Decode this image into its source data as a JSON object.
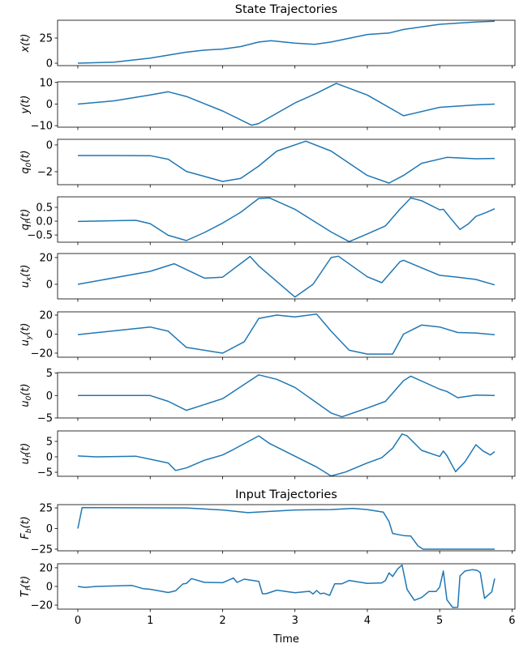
{
  "chart_data": [
    {
      "type": "line",
      "title": "State Trajectories",
      "ylabel": {
        "sym": "x",
        "sub": "",
        "arg": "(t)"
      },
      "xlim": [
        -0.28,
        6.04
      ],
      "ylim": [
        -2.4,
        42.7
      ],
      "yticks": [
        0,
        25
      ],
      "color": "#1f77b4",
      "grid": false,
      "x": [
        0,
        0.5,
        1,
        1.5,
        1.75,
        2,
        2.25,
        2.5,
        2.67,
        3,
        3.27,
        3.5,
        4,
        4.3,
        4.5,
        5,
        5.5,
        5.76
      ],
      "y": [
        0,
        1,
        5,
        11,
        13,
        14,
        16.5,
        21,
        22.3,
        20,
        18.8,
        21,
        28.5,
        30,
        33.5,
        38.7,
        41,
        41.7
      ]
    },
    {
      "type": "line",
      "ylabel": {
        "sym": "y",
        "sub": "",
        "arg": "(t)"
      },
      "xlim": [
        -0.28,
        6.04
      ],
      "ylim": [
        -10.7,
        10.3
      ],
      "yticks": [
        -10,
        0,
        10
      ],
      "x": [
        0,
        0.5,
        1,
        1.25,
        1.5,
        2,
        2.4,
        2.5,
        3,
        3.3,
        3.57,
        4,
        4.5,
        5,
        5.5,
        5.76
      ],
      "y": [
        0,
        1.5,
        4.2,
        5.7,
        3.5,
        -3.2,
        -9.8,
        -9,
        0.5,
        5,
        9.6,
        4.2,
        -5.4,
        -1.5,
        -0.4,
        0
      ]
    },
    {
      "type": "line",
      "ylabel": {
        "sym": "q",
        "sub": "0",
        "arg": "(t)"
      },
      "xlim": [
        -0.28,
        6.04
      ],
      "ylim": [
        -2.97,
        0.42
      ],
      "yticks": [
        -2,
        0
      ],
      "x": [
        0,
        0.5,
        1,
        1.25,
        1.5,
        2,
        2.25,
        2.5,
        2.75,
        3.15,
        3.5,
        4,
        4.3,
        4.5,
        4.75,
        5.1,
        5.5,
        5.76
      ],
      "y": [
        -0.79,
        -0.79,
        -0.8,
        -1.07,
        -1.98,
        -2.73,
        -2.5,
        -1.58,
        -0.46,
        0.28,
        -0.46,
        -2.28,
        -2.85,
        -2.28,
        -1.37,
        -0.93,
        -1.03,
        -1.01
      ]
    },
    {
      "type": "line",
      "ylabel": {
        "sym": "q",
        "sub": "f",
        "arg": "(t)"
      },
      "xlim": [
        -0.28,
        6.04
      ],
      "ylim": [
        -0.76,
        0.88
      ],
      "yticks": [
        -0.5,
        0,
        0.5
      ],
      "x": [
        0,
        0.8,
        1,
        1.25,
        1.5,
        1.75,
        2,
        2.25,
        2.5,
        2.65,
        3,
        3.5,
        3.75,
        4,
        4.25,
        4.45,
        4.6,
        4.75,
        5,
        5.05,
        5.15,
        5.28,
        5.4,
        5.5,
        5.65,
        5.76
      ],
      "y": [
        -0.01,
        0.03,
        -0.09,
        -0.51,
        -0.7,
        -0.41,
        -0.07,
        0.32,
        0.82,
        0.84,
        0.43,
        -0.39,
        -0.74,
        -0.46,
        -0.17,
        0.43,
        0.84,
        0.74,
        0.41,
        0.43,
        0.11,
        -0.3,
        -0.09,
        0.17,
        0.32,
        0.45
      ]
    },
    {
      "type": "line",
      "ylabel": {
        "sym": "u",
        "sub": "x",
        "arg": "(t)"
      },
      "xlim": [
        -0.28,
        6.04
      ],
      "ylim": [
        -10.9,
        23
      ],
      "yticks": [
        0,
        20
      ],
      "x": [
        0,
        1,
        1.33,
        1.75,
        2,
        2.38,
        2.5,
        3,
        3.25,
        3.5,
        3.6,
        4,
        4.2,
        4.45,
        4.5,
        5,
        5.25,
        5.5,
        5.76
      ],
      "y": [
        0,
        9.7,
        15.4,
        4.6,
        5.3,
        20.8,
        13.7,
        -9.5,
        0,
        20,
        21,
        5.6,
        1.2,
        16.8,
        18,
        6.7,
        5.3,
        3.6,
        -0.4
      ]
    },
    {
      "type": "line",
      "ylabel": {
        "sym": "u",
        "sub": "y",
        "arg": "(t)"
      },
      "xlim": [
        -0.28,
        6.04
      ],
      "ylim": [
        -24.3,
        23.4
      ],
      "yticks": [
        -20,
        0,
        20
      ],
      "x": [
        0,
        1,
        1.25,
        1.5,
        2,
        2.3,
        2.5,
        2.75,
        3,
        3.3,
        3.5,
        3.75,
        4,
        4.35,
        4.5,
        4.75,
        5,
        5.25,
        5.5,
        5.76
      ],
      "y": [
        -0.5,
        7.5,
        3,
        -14,
        -20,
        -8,
        16.5,
        20,
        18,
        21,
        3,
        -17,
        -21,
        -21,
        0,
        9.5,
        7.5,
        1.7,
        1.2,
        -0.6
      ]
    },
    {
      "type": "line",
      "ylabel": {
        "sym": "u",
        "sub": "0",
        "arg": "(t)"
      },
      "xlim": [
        -0.28,
        6.04
      ],
      "ylim": [
        -5.0,
        5.1
      ],
      "yticks": [
        -5,
        0,
        5
      ],
      "x": [
        0,
        1,
        1.25,
        1.5,
        2,
        2.5,
        2.75,
        3,
        3.5,
        3.65,
        4,
        4.25,
        4.5,
        4.6,
        5,
        5.1,
        5.25,
        5.5,
        5.76
      ],
      "y": [
        0,
        0,
        -1.3,
        -3.3,
        -0.7,
        4.6,
        3.6,
        1.8,
        -3.9,
        -4.75,
        -2.8,
        -1.3,
        3.3,
        4.3,
        1.4,
        0.9,
        -0.5,
        0.1,
        0
      ]
    },
    {
      "type": "line",
      "ylabel": {
        "sym": "u",
        "sub": "f",
        "arg": "(t)"
      },
      "xlim": [
        -0.28,
        6.04
      ],
      "ylim": [
        -6.3,
        8.4
      ],
      "yticks": [
        -5,
        0,
        5
      ],
      "x": [
        0,
        0.25,
        0.8,
        1.25,
        1.35,
        1.5,
        1.75,
        2,
        2.15,
        2.5,
        2.65,
        3,
        3.3,
        3.5,
        3.7,
        4,
        4.2,
        4.35,
        4.48,
        4.55,
        4.75,
        5,
        5.05,
        5.1,
        5.22,
        5.35,
        5.5,
        5.6,
        5.7,
        5.76
      ],
      "y": [
        0.3,
        0,
        0.2,
        -2,
        -4.4,
        -3.6,
        -1.1,
        0.6,
        2.4,
        6.8,
        4.3,
        0.2,
        -3.3,
        -6.2,
        -4.9,
        -2,
        -0.3,
        2.8,
        7.4,
        6.8,
        2.1,
        0.1,
        1.9,
        0.4,
        -4.8,
        -1.6,
        3.9,
        1.9,
        0.6,
        1.7
      ]
    },
    {
      "type": "line",
      "title": "Input Trajectories",
      "ylabel": {
        "sym": "F",
        "sub": "b",
        "arg": "(t)"
      },
      "xlim": [
        -0.28,
        6.04
      ],
      "ylim": [
        -27,
        29
      ],
      "yticks": [
        -25,
        0,
        25
      ],
      "x": [
        0,
        0.06,
        1.5,
        2,
        2.35,
        3,
        3.5,
        3.8,
        4,
        4.22,
        4.3,
        4.35,
        4.5,
        4.6,
        4.7,
        4.77,
        5.76
      ],
      "y": [
        0,
        25.5,
        25,
        22.5,
        19.3,
        22.5,
        23,
        24.5,
        23,
        20,
        8.5,
        -6,
        -8.5,
        -9,
        -21,
        -25,
        -25
      ]
    },
    {
      "type": "line",
      "ylabel": {
        "sym": "T",
        "sub": "f",
        "arg": "(t)"
      },
      "xlabel": "Time",
      "xlim": [
        -0.28,
        6.04
      ],
      "ylim": [
        -24.3,
        24.3
      ],
      "yticks": [
        -20,
        0,
        20
      ],
      "xticks": [
        0,
        1,
        2,
        3,
        4,
        5,
        6
      ],
      "x": [
        0,
        0.1,
        0.25,
        0.75,
        0.9,
        1,
        1.25,
        1.35,
        1.45,
        1.5,
        1.57,
        1.75,
        2,
        2.15,
        2.2,
        2.3,
        2.5,
        2.55,
        2.6,
        2.75,
        3,
        3.2,
        3.25,
        3.3,
        3.35,
        3.4,
        3.48,
        3.55,
        3.65,
        3.75,
        4,
        4.2,
        4.25,
        4.3,
        4.35,
        4.42,
        4.48,
        4.55,
        4.65,
        4.75,
        4.85,
        4.95,
        5,
        5.05,
        5.1,
        5.18,
        5.25,
        5.28,
        5.35,
        5.45,
        5.52,
        5.56,
        5.62,
        5.72,
        5.76
      ],
      "y": [
        0,
        -1,
        0,
        1,
        -2.3,
        -3,
        -6.5,
        -4.7,
        2.6,
        3.2,
        8.4,
        4.3,
        4,
        9,
        4.3,
        7.8,
        5.5,
        -7.8,
        -7.8,
        -4,
        -6.7,
        -5.2,
        -8.1,
        -4.3,
        -7.8,
        -7.2,
        -9.6,
        2.9,
        2.9,
        6.4,
        3.2,
        3.8,
        6.4,
        14.5,
        10.7,
        18.8,
        23,
        -3.2,
        -14.8,
        -11.9,
        -5.5,
        -5.5,
        -0.6,
        16.5,
        -14.2,
        -22.6,
        -22.3,
        11.3,
        16.5,
        18,
        17.1,
        14.8,
        -12.8,
        -5.8,
        8.4
      ]
    }
  ]
}
